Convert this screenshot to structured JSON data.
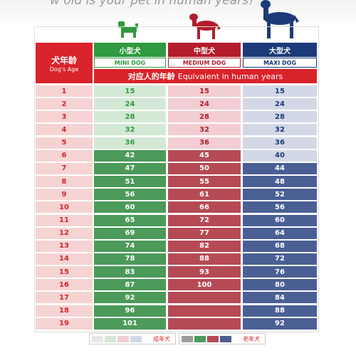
{
  "title": "w old is your pet in human years?",
  "table": {
    "age_header": {
      "zh": "犬年龄",
      "en": "Dog's Age"
    },
    "subheader": {
      "zh": "对应人的年龄",
      "en": "Equivalent in human years"
    },
    "ages": [
      1,
      2,
      3,
      4,
      5,
      6,
      7,
      8,
      9,
      10,
      11,
      12,
      13,
      14,
      15,
      16,
      17,
      18,
      19
    ],
    "columns": [
      {
        "zh": "小型犬",
        "en": "MINI DOG",
        "adult": [
          15,
          24,
          28,
          32,
          36
        ],
        "senior": [
          42,
          47,
          51,
          56,
          60,
          65,
          69,
          74,
          78,
          83,
          87,
          92,
          96,
          101
        ]
      },
      {
        "zh": "中型犬",
        "en": "MEDIUM DOG",
        "adult": [
          15,
          24,
          28,
          32,
          36
        ],
        "senior": [
          45,
          50,
          55,
          61,
          66,
          72,
          77,
          82,
          88,
          93,
          100,
          null,
          null,
          null
        ]
      },
      {
        "zh": "大型犬",
        "en": "MAXI DOG",
        "adult": [
          15,
          24,
          28,
          32,
          36,
          40
        ],
        "senior": [
          44,
          48,
          52,
          56,
          60,
          64,
          68,
          72,
          76,
          80,
          84,
          88,
          92
        ]
      }
    ]
  },
  "legend": {
    "adult": "成年犬",
    "senior": "老年犬"
  }
}
